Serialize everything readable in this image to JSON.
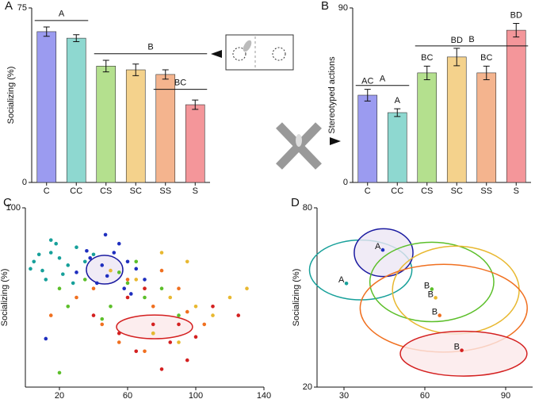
{
  "chart_data": [
    {
      "type": "bar",
      "label": "A",
      "ylabel": "Socializing (%)",
      "categories": [
        "C",
        "CC",
        "CS",
        "SC",
        "SS",
        "S"
      ],
      "values": [
        64.8,
        62,
        50,
        48.4,
        46.4,
        33.4
      ],
      "errors": [
        2,
        1.5,
        2.5,
        2.5,
        2,
        2
      ],
      "colors": [
        "#9b9bf0",
        "#8ed8d0",
        "#b4e08e",
        "#f4d28c",
        "#f4b48e",
        "#f4969a"
      ],
      "ylim": [
        0,
        75
      ],
      "yticks": [
        0,
        75
      ],
      "annotations": [
        {
          "text": "A",
          "y": 69.6,
          "from": 0,
          "to": 1
        },
        {
          "text": "B",
          "y": 55.3,
          "from": 2,
          "to": 5
        },
        {
          "text": "BC",
          "y": 40,
          "from": 4,
          "to": 5
        }
      ]
    },
    {
      "type": "bar",
      "label": "B",
      "ylabel": "Stereotyped actions",
      "categories": [
        "C",
        "CC",
        "CS",
        "SC",
        "SS",
        "S"
      ],
      "values": [
        45,
        36,
        56.5,
        64.7,
        56.5,
        78.5
      ],
      "errors": [
        3,
        2,
        3.5,
        4.5,
        3.5,
        3.5
      ],
      "bar_labels": [
        "AC",
        "A",
        "BC",
        "BD",
        "BC",
        "BD"
      ],
      "colors": [
        "#9b9bf0",
        "#8ed8d0",
        "#b4e08e",
        "#f4d28c",
        "#f4b48e",
        "#f4969a"
      ],
      "ylim": [
        0,
        90
      ],
      "yticks": [
        0,
        90
      ],
      "annotations": [
        {
          "text": "A",
          "y": 50,
          "from": 0,
          "to": 1
        },
        {
          "text": "B",
          "y": 70.4,
          "from": 2,
          "to": 5
        }
      ]
    },
    {
      "type": "scatter",
      "label": "C",
      "xlabel": "Stereotyped actions",
      "ylabel": "Socializing (%)",
      "xlim": [
        0,
        140
      ],
      "xticks": [
        20,
        60,
        100,
        140
      ],
      "ylim": [
        0,
        100
      ],
      "yticks": [
        100
      ],
      "series": [
        {
          "color": "#1f2fbf",
          "x": [
            38,
            45,
            52,
            60,
            48,
            42,
            65,
            55,
            30,
            70,
            58,
            47,
            36,
            62,
            12
          ],
          "y": [
            72,
            68,
            75,
            70,
            62,
            58,
            66,
            80,
            64,
            60,
            55,
            85,
            76,
            52,
            27
          ]
        },
        {
          "color": "#17a09a",
          "x": [
            5,
            10,
            15,
            20,
            25,
            12,
            30,
            35,
            18,
            8,
            22,
            28,
            40,
            15,
            3
          ],
          "y": [
            70,
            65,
            75,
            72,
            68,
            60,
            78,
            70,
            80,
            74,
            63,
            58,
            74,
            82,
            66
          ]
        },
        {
          "color": "#5cbf2a",
          "x": [
            20,
            35,
            50,
            65,
            80,
            45,
            70,
            90,
            55,
            25,
            75,
            60,
            20
          ],
          "y": [
            55,
            60,
            45,
            70,
            55,
            38,
            50,
            40,
            64,
            45,
            30,
            58,
            8
          ]
        },
        {
          "color": "#e8b830",
          "x": [
            50,
            70,
            85,
            95,
            110,
            130,
            75,
            100,
            65,
            90,
            120,
            80
          ],
          "y": [
            65,
            55,
            50,
            70,
            40,
            55,
            30,
            45,
            60,
            25,
            50,
            75
          ]
        },
        {
          "color": "#f07020",
          "x": [
            15,
            30,
            45,
            60,
            75,
            90,
            105,
            55,
            80,
            40,
            70,
            95
          ],
          "y": [
            40,
            50,
            35,
            60,
            45,
            55,
            35,
            25,
            65,
            55,
            20,
            42
          ]
        },
        {
          "color": "#d42020",
          "x": [
            40,
            55,
            65,
            75,
            85,
            95,
            110,
            125,
            60,
            80,
            90,
            100,
            70
          ],
          "y": [
            40,
            30,
            20,
            35,
            25,
            15,
            45,
            40,
            50,
            10,
            35,
            28,
            55
          ]
        }
      ],
      "ellipses": [
        {
          "cx": 46.5,
          "cy": 65.5,
          "rx": 10.7,
          "ry": 8,
          "color": "#1a1aa0",
          "fill": "#ece6f4"
        },
        {
          "cx": 75.8,
          "cy": 33.6,
          "rx": 22.3,
          "ry": 6.6,
          "color": "#d42020",
          "fill": "#fbe8ea"
        }
      ]
    },
    {
      "type": "scatter",
      "label": "D",
      "xlabel": "Stereotyped actions",
      "ylabel": "Socializing (%)",
      "xlim": [
        20,
        100
      ],
      "xticks": [
        30,
        60,
        90
      ],
      "ylim": [
        20,
        80
      ],
      "yticks": [
        20,
        80
      ],
      "series": [
        {
          "color": "#17a09a",
          "x": [
            30.9
          ],
          "y": [
            54.7
          ],
          "point_labels": [
            "A"
          ]
        },
        {
          "color": "#1f2fbf",
          "x": [
            44.4
          ],
          "y": [
            65.9
          ],
          "point_labels": [
            "A"
          ]
        },
        {
          "color": "#5cbf2a",
          "x": [
            62.6
          ],
          "y": [
            52.8
          ],
          "point_labels": [
            "B"
          ]
        },
        {
          "color": "#e8b830",
          "x": [
            64
          ],
          "y": [
            49.9
          ],
          "point_labels": [
            "B"
          ]
        },
        {
          "color": "#f07020",
          "x": [
            65.5
          ],
          "y": [
            44
          ],
          "point_labels": [
            "B"
          ]
        },
        {
          "color": "#d42020",
          "x": [
            73.7
          ],
          "y": [
            32.3
          ],
          "point_labels": [
            "B"
          ]
        }
      ],
      "ellipses": [
        {
          "cx": 36.2,
          "cy": 59.2,
          "rx": 19,
          "ry": 10,
          "color": "#17a09a",
          "fill": "none"
        },
        {
          "cx": 44.7,
          "cy": 65,
          "rx": 10.9,
          "ry": 8,
          "color": "#1a1aa0",
          "fill": "#ece6f4"
        },
        {
          "cx": 62.6,
          "cy": 55.2,
          "rx": 23,
          "ry": 13.3,
          "color": "#5cbf2a",
          "fill": "none"
        },
        {
          "cx": 71.5,
          "cy": 52.5,
          "rx": 23.5,
          "ry": 14.7,
          "color": "#e8b830",
          "fill": "none"
        },
        {
          "cx": 67,
          "cy": 46.4,
          "rx": 31,
          "ry": 14.7,
          "color": "#f07020",
          "fill": "none"
        },
        {
          "cx": 74.4,
          "cy": 31.2,
          "rx": 23.5,
          "ry": 7.5,
          "color": "#d42020",
          "fill": "#fbe8ea"
        }
      ]
    }
  ]
}
